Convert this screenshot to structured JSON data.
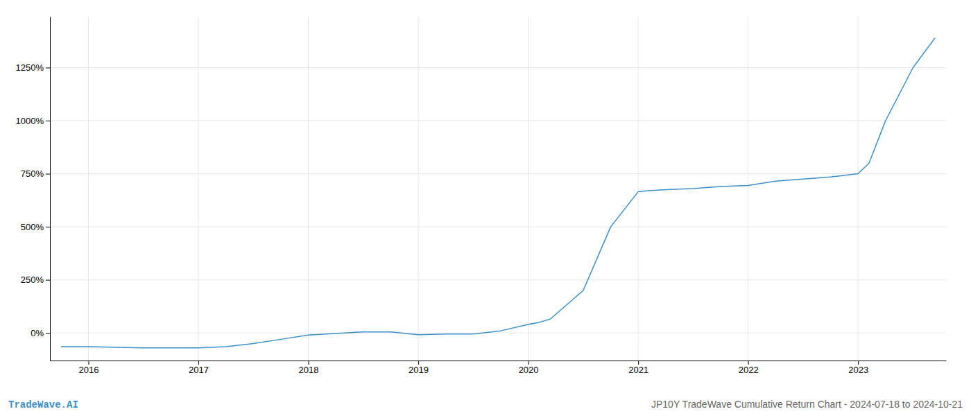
{
  "chart_data": {
    "type": "line",
    "title": "JP10Y TradeWave Cumulative Return Chart - 2024-07-18 to 2024-10-21",
    "annotations": [
      "TradeWave.AI"
    ],
    "color": "#3a8fc8",
    "x": [
      2015.75,
      2016.0,
      2016.5,
      2017.0,
      2017.25,
      2017.5,
      2017.75,
      2018.0,
      2018.5,
      2018.75,
      2019.0,
      2019.25,
      2019.5,
      2019.75,
      2020.0,
      2020.1,
      2020.2,
      2020.5,
      2020.75,
      2021.0,
      2021.1,
      2021.25,
      2021.5,
      2021.75,
      2022.0,
      2022.25,
      2022.5,
      2022.75,
      2023.0,
      2023.1,
      2023.25,
      2023.5,
      2023.7
    ],
    "values": [
      -65,
      -65,
      -70,
      -70,
      -65,
      -50,
      -30,
      -10,
      5,
      5,
      -8,
      -5,
      -5,
      10,
      40,
      50,
      65,
      200,
      500,
      665,
      670,
      675,
      680,
      690,
      695,
      715,
      725,
      735,
      750,
      800,
      1000,
      1250,
      1390
    ],
    "xlim": [
      2015.65,
      2023.8
    ],
    "ylim": [
      -130,
      1490
    ],
    "xticks": [
      2016,
      2017,
      2018,
      2019,
      2020,
      2021,
      2022,
      2023
    ],
    "yticks": [
      {
        "value": 0,
        "label": "0%"
      },
      {
        "value": 250,
        "label": "250%"
      },
      {
        "value": 500,
        "label": "500%"
      },
      {
        "value": 750,
        "label": "750%"
      },
      {
        "value": 1000,
        "label": "1000%"
      },
      {
        "value": 1250,
        "label": "1250%"
      }
    ],
    "grid": true
  }
}
